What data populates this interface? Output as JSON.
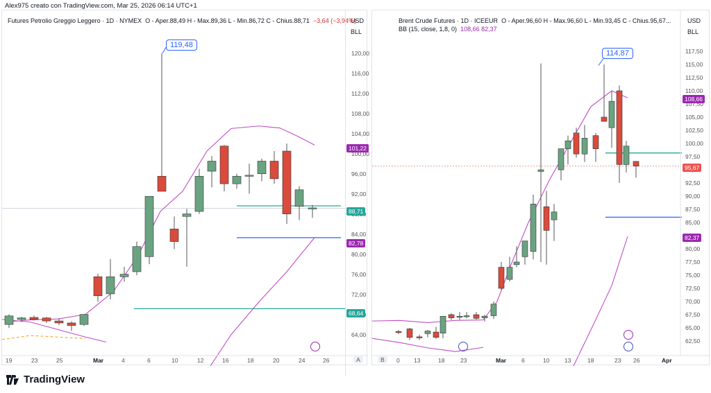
{
  "header": {
    "caption": "Alex975 creato con TradingView.com, Mar 25, 2026 06:14 UTC+1"
  },
  "footer": {
    "brand": "TradingView"
  },
  "left": {
    "legend": "Futures Petrolio Greggio Leggero · 1D · NYMEX",
    "ohlc": "O - Aper.88,49  H - Max.89,36  L - Min.86,72  C - Chius.88,71",
    "change": "−3,64 (−3,94%)",
    "currency": "USD",
    "unit": "BLL",
    "callout": "119,48",
    "price_labels": [
      "120,00",
      "116,00",
      "112,00",
      "108,00",
      "104,00",
      "100,00",
      "96,00",
      "92,00",
      "88,00",
      "84,00",
      "80,00",
      "76,00",
      "72,00",
      "68,00",
      "64,00"
    ],
    "tags": [
      {
        "text": "101,22",
        "color": "#9c27b0"
      },
      {
        "text": "88,71",
        "color": "#26a69a"
      },
      {
        "text": "82,78",
        "color": "#9c27b0"
      },
      {
        "text": "68,64",
        "color": "#26a69a"
      }
    ],
    "x_labels": [
      "19",
      "23",
      "25",
      "Mar",
      "4",
      "6",
      "10",
      "12",
      "16",
      "18",
      "20",
      "24",
      "26"
    ],
    "corner": "A"
  },
  "right": {
    "legend": "Brent Crude Futures · 1D · ICEEUR",
    "ohlc": "O - Aper.96,60  H - Max.96,60  L - Min.93,45  C - Chius.95,67...",
    "bb_label": "BB (15, close, 1,8, 0)",
    "bb_vals": "108,66  82,37",
    "currency": "USD",
    "unit": "BLL",
    "callout": "114,87",
    "price_labels": [
      "117,50",
      "115,00",
      "112,50",
      "110,00",
      "107,50",
      "105,00",
      "102,50",
      "100,00",
      "97,50",
      "95,00",
      "92,50",
      "90,00",
      "87,50",
      "85,00",
      "82,50",
      "80,00",
      "77,50",
      "75,00",
      "72,50",
      "70,00",
      "67,50",
      "65,00",
      "62,50"
    ],
    "tags": [
      {
        "text": "108,66",
        "color": "#9c27b0"
      },
      {
        "text": "95,67",
        "color": "#ef5350"
      },
      {
        "text": "82,37",
        "color": "#9c27b0"
      }
    ],
    "x_labels": [
      "0",
      "13",
      "18",
      "23",
      "Mar",
      "6",
      "10",
      "13",
      "18",
      "23",
      "26",
      "Apr"
    ],
    "corner": "B"
  }
}
